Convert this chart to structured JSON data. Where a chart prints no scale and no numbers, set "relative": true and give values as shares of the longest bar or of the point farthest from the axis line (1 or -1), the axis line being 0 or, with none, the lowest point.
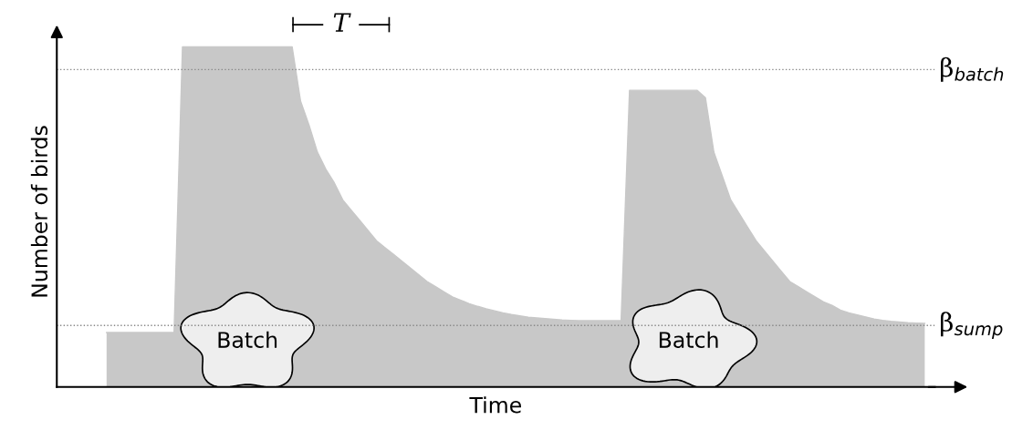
{
  "chart_data": {
    "type": "area",
    "relative": true,
    "xlabel": "Time",
    "ylabel": "Number of birds",
    "categories": [
      null,
      null,
      null,
      null,
      null,
      null,
      null,
      null,
      null,
      null,
      null,
      null,
      null,
      null,
      null,
      null,
      null,
      null,
      null,
      null,
      null,
      null,
      null,
      null,
      null,
      null,
      null,
      null,
      null,
      null,
      null,
      null,
      null,
      null,
      null,
      null,
      null,
      null,
      null,
      null,
      null,
      null,
      null,
      null,
      null,
      null,
      null,
      null,
      null,
      null,
      null,
      null,
      null,
      null,
      null,
      null,
      null,
      null,
      null,
      null,
      null,
      null,
      null,
      null,
      null,
      null,
      null,
      null,
      null,
      null,
      null,
      null,
      null,
      null,
      null,
      null,
      null,
      null,
      null,
      null,
      null,
      null,
      null,
      null,
      null,
      null,
      null,
      null,
      null,
      null,
      null,
      null,
      null,
      null,
      null,
      null,
      null,
      null
    ],
    "series": [
      {
        "color": "#c8c8c8",
        "values": [
          0.16,
          0.16,
          0.16,
          0.16,
          0.16,
          0.16,
          0.16,
          0.16,
          0.16,
          1.0,
          1.0,
          1.0,
          1.0,
          1.0,
          1.0,
          1.0,
          1.0,
          1.0,
          1.0,
          1.0,
          1.0,
          1.0,
          1.0,
          0.84,
          0.77,
          0.69,
          0.64,
          0.6,
          0.55,
          0.52,
          0.49,
          0.46,
          0.43,
          0.41,
          0.39,
          0.37,
          0.35,
          0.33,
          0.31,
          0.295,
          0.28,
          0.265,
          0.255,
          0.245,
          0.237,
          0.23,
          0.224,
          0.218,
          0.213,
          0.209,
          0.205,
          0.203,
          0.201,
          0.199,
          0.197,
          0.196,
          0.195,
          0.195,
          0.195,
          0.195,
          0.195,
          0.195,
          0.872,
          0.872,
          0.872,
          0.872,
          0.872,
          0.872,
          0.872,
          0.872,
          0.872,
          0.85,
          0.69,
          0.62,
          0.55,
          0.51,
          0.47,
          0.43,
          0.4,
          0.37,
          0.34,
          0.31,
          0.295,
          0.28,
          0.265,
          0.25,
          0.24,
          0.226,
          0.218,
          0.212,
          0.206,
          0.2,
          0.196,
          0.193,
          0.191,
          0.189,
          0.188,
          0.187
        ]
      }
    ],
    "ref_lines": [
      {
        "axis": "y",
        "value": 0.933,
        "label": "β$_{batch}$",
        "color": "#888888",
        "line_style": "dotted"
      },
      {
        "axis": "y",
        "value": 0.181,
        "label": "β$_{sump}$",
        "color": "#888888",
        "line_style": "dotted"
      }
    ],
    "annotations": [
      "T",
      "Batch",
      "Batch"
    ]
  }
}
